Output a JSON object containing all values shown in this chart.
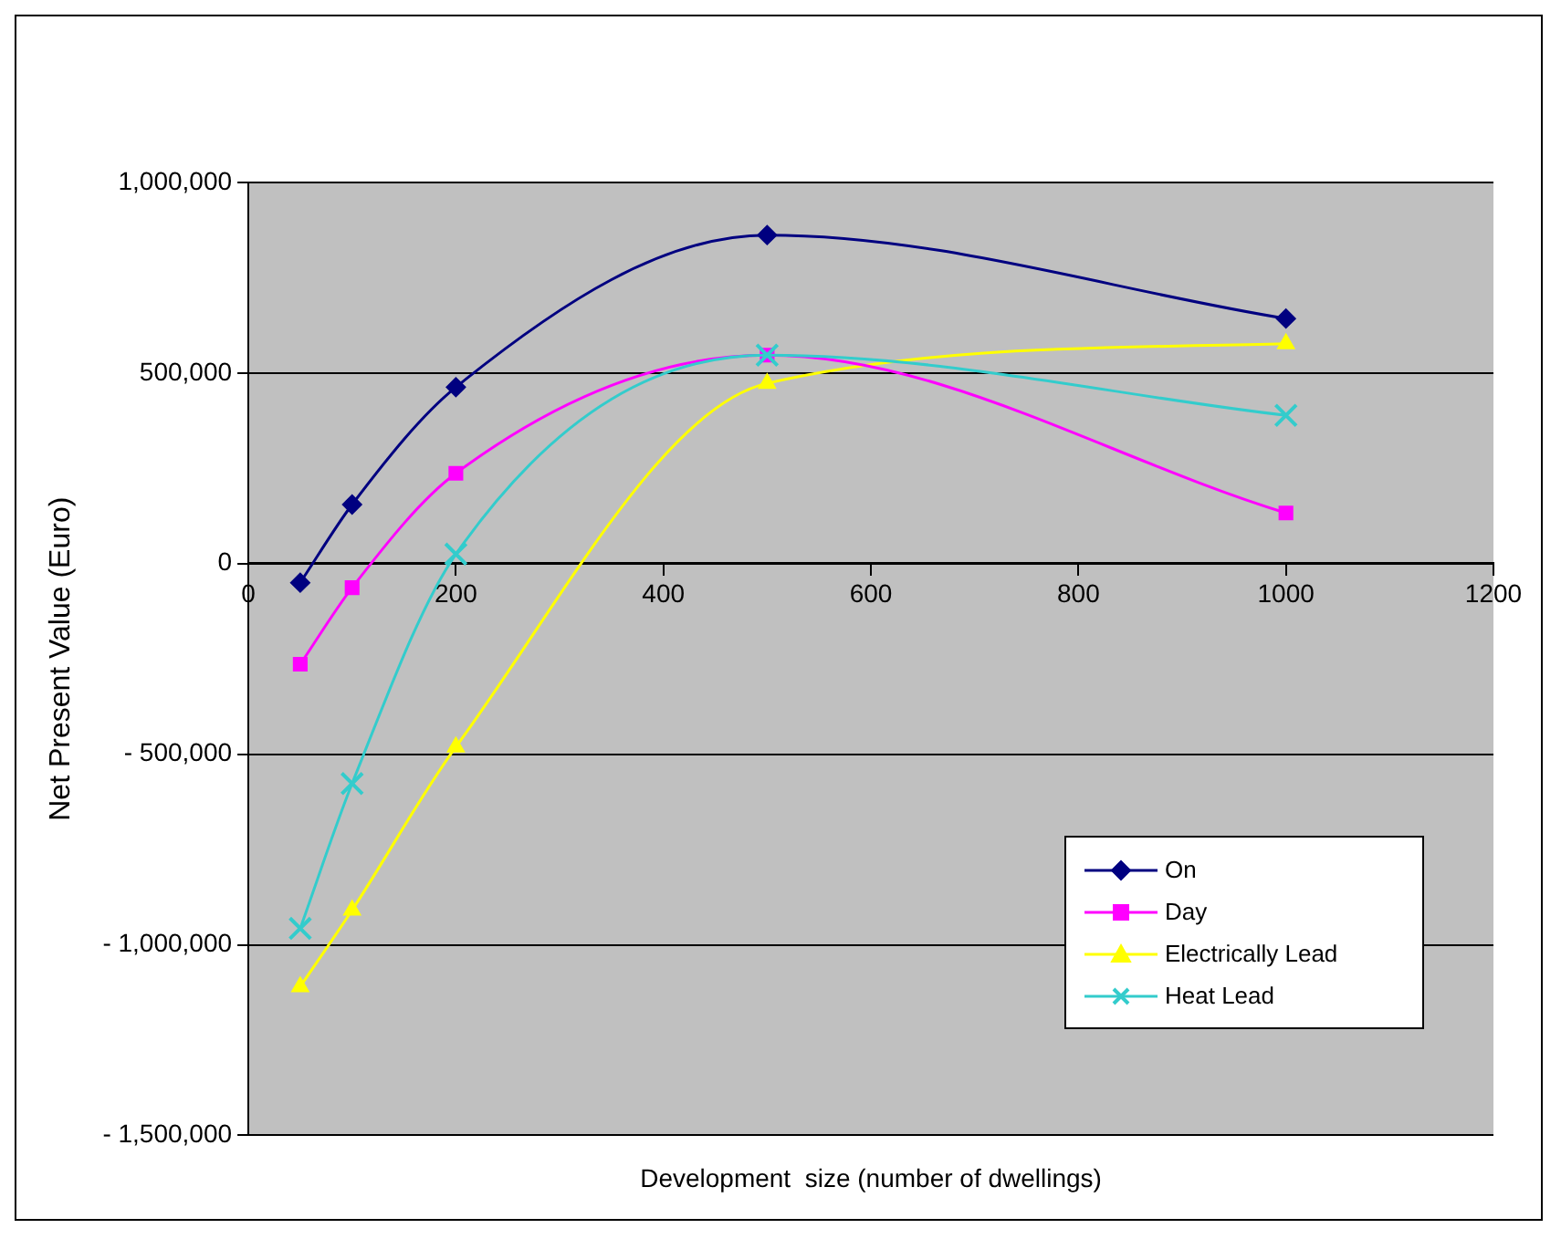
{
  "chart_data": {
    "type": "line",
    "xlabel": "Development  size (number of dwellings)",
    "ylabel": "Net Present Value (Euro)",
    "x": [
      50,
      100,
      200,
      500,
      1000
    ],
    "series": [
      {
        "name": "On",
        "color": "#000080",
        "marker": "diamond",
        "values": [
          -50000,
          155000,
          463000,
          862000,
          643000
        ]
      },
      {
        "name": "Day",
        "color": "#ff00ff",
        "marker": "square",
        "values": [
          -264000,
          -63000,
          237000,
          547000,
          133000
        ]
      },
      {
        "name": "Electrically Lead",
        "color": "#ffff00",
        "marker": "triangle",
        "values": [
          -1110000,
          -909000,
          -481000,
          473000,
          577000
        ]
      },
      {
        "name": "Heat Lead",
        "color": "#33cccc",
        "marker": "cross",
        "values": [
          -957000,
          -577000,
          25000,
          547000,
          389000
        ]
      }
    ],
    "xlim": [
      0,
      1200
    ],
    "xticks": [
      0,
      200,
      400,
      600,
      800,
      1000,
      1200
    ],
    "ylim": [
      -1500000,
      1000000
    ],
    "yticks": [
      {
        "value": -1500000,
        "label": "- 1,500,000"
      },
      {
        "value": -1000000,
        "label": "- 1,000,000"
      },
      {
        "value": -500000,
        "label": "- 500,000"
      },
      {
        "value": 0,
        "label": "0"
      },
      {
        "value": 500000,
        "label": "500,000"
      },
      {
        "value": 1000000,
        "label": "1,000,000"
      }
    ],
    "grid": "y",
    "legend": "bottom right",
    "line_style": "solid"
  }
}
